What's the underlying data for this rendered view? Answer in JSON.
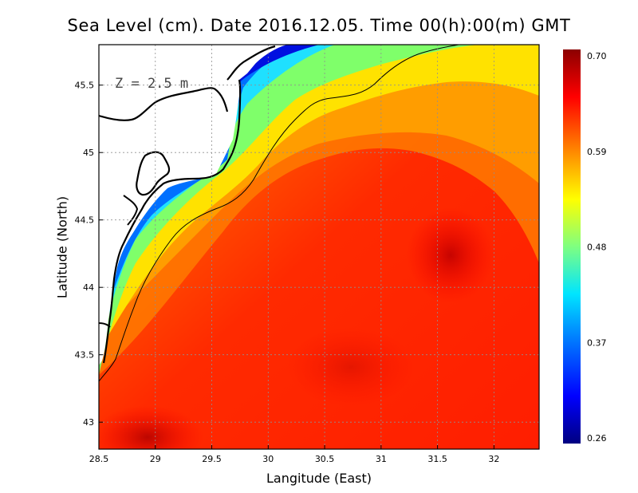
{
  "title": "Sea Level (cm). Date 2016.12.05. Time 00(h):00(m) GMT",
  "annotation": "Z = 2.5 m",
  "colors": {
    "land": "#ffffff",
    "coast": "#000000",
    "scale": [
      "#000080",
      "#0000ff",
      "#0080ff",
      "#00e5ff",
      "#7fff80",
      "#ffff00",
      "#ff8000",
      "#ff0000",
      "#8b0000"
    ]
  },
  "chart_data": {
    "type": "heatmap",
    "title": "Sea Level (cm). Date 2016.12.05. Time 00(h):00(m) GMT",
    "xlabel": "Langitude (East)",
    "ylabel": "Latitude (North)",
    "xlim": [
      28.5,
      32.4
    ],
    "ylim": [
      42.8,
      45.8
    ],
    "xticks": [
      "28.5",
      "29",
      "29.5",
      "30",
      "30.5",
      "31",
      "31.5",
      "32"
    ],
    "yticks": [
      "43",
      "43.5",
      "44",
      "44.5",
      "45",
      "45.5"
    ],
    "grid": true,
    "colorbar": {
      "min": 0.26,
      "max": 0.7,
      "ticks": [
        "0.70",
        "0.59",
        "0.48",
        "0.37",
        "0.26"
      ],
      "placement": "right"
    },
    "contour_level": 0.5
  }
}
